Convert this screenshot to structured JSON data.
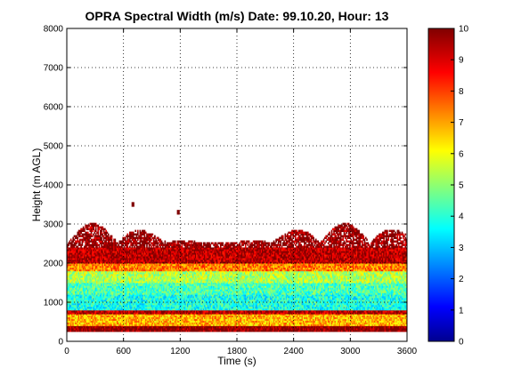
{
  "chart_data": {
    "type": "heatmap",
    "title": "OPRA Spectral Width (m/s)  Date: 99.10.20, Hour: 13",
    "xlabel": "Time (s)",
    "ylabel": "Height (m AGL)",
    "xlim": [
      0,
      3600
    ],
    "ylim": [
      0,
      8000
    ],
    "x_ticks": [
      "0",
      "600",
      "1200",
      "1800",
      "2400",
      "3000",
      "3600"
    ],
    "y_ticks": [
      "0",
      "1000",
      "2000",
      "3000",
      "4000",
      "5000",
      "6000",
      "7000",
      "8000"
    ],
    "grid": true,
    "colormap": "jet",
    "colorbar": {
      "range": [
        0,
        10
      ],
      "ticks": [
        "0",
        "1",
        "2",
        "3",
        "4",
        "5",
        "6",
        "7",
        "8",
        "9",
        "10"
      ]
    },
    "height_layers": [
      {
        "height_range": [
          250,
          400
        ],
        "spectral_width": 10
      },
      {
        "height_range": [
          400,
          700
        ],
        "spectral_width": 7
      },
      {
        "height_range": [
          700,
          800
        ],
        "spectral_width": 9.5
      },
      {
        "height_range": [
          800,
          1200
        ],
        "spectral_width": 4
      },
      {
        "height_range": [
          1200,
          1500
        ],
        "spectral_width": 4.5
      },
      {
        "height_range": [
          1500,
          1800
        ],
        "spectral_width": 5.5
      },
      {
        "height_range": [
          1800,
          2000
        ],
        "spectral_width": 7.5
      },
      {
        "height_range": [
          2000,
          2400
        ],
        "spectral_width": 9.5
      },
      {
        "height_range": [
          2400,
          3100
        ],
        "spectral_width": 10
      }
    ],
    "isolated_echoes": [
      {
        "time": 700,
        "height": 3500
      },
      {
        "time": 1180,
        "height": 3300
      }
    ]
  }
}
